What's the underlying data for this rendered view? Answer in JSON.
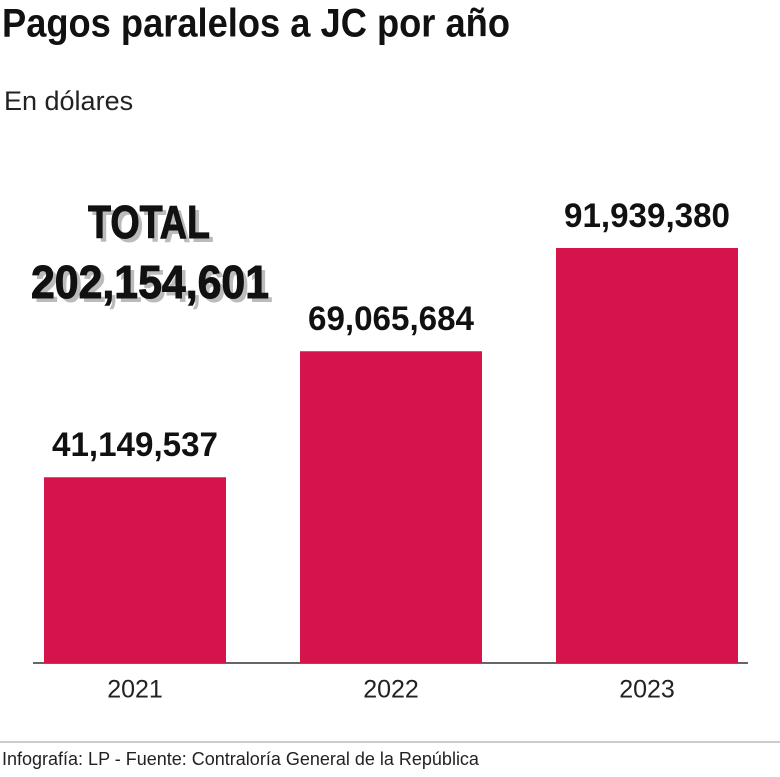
{
  "chart_data": {
    "type": "bar",
    "title": "Pagos paralelos a JC por año",
    "subtitle": "En dólares",
    "categories": [
      "2021",
      "2022",
      "2023"
    ],
    "values": [
      41149537,
      69065684,
      91939380
    ],
    "value_labels": [
      "41,149,537",
      "69,065,684",
      "91,939,380"
    ],
    "color": "#d6134b",
    "annotations": [
      "TOTAL",
      "202,154,601"
    ],
    "source": "Infografía: LP - Fuente: Contraloría General de la República"
  }
}
